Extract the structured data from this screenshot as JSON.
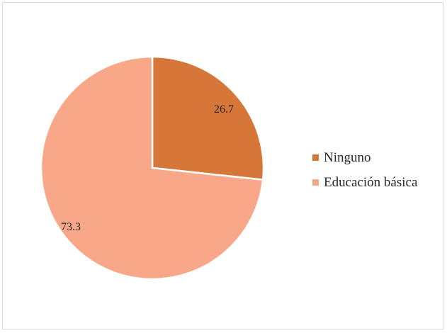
{
  "chart_data": {
    "type": "pie",
    "categories": [
      "Ninguno",
      "Educación básica"
    ],
    "values": [
      26.7,
      73.3
    ],
    "colors": [
      "#d77639",
      "#f8a889"
    ],
    "data_labels": [
      "26.7",
      "73.3"
    ],
    "title": "",
    "legend_position": "right",
    "start_angle_deg": 0,
    "direction": "clockwise"
  }
}
